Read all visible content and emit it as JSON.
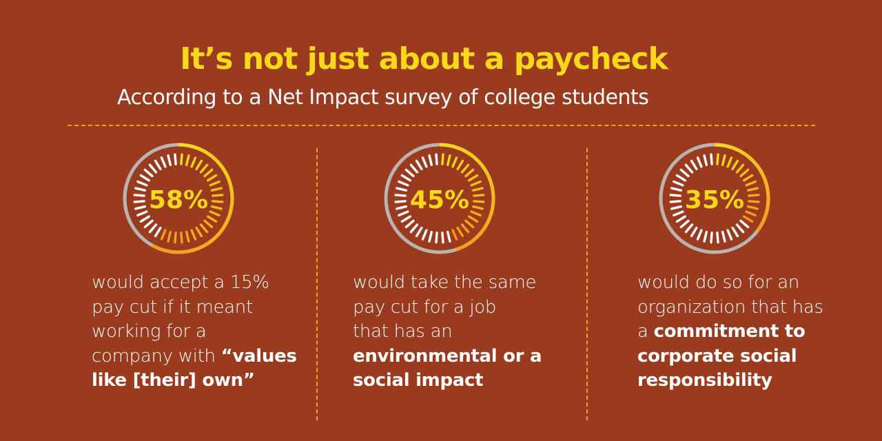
{
  "title": "It’s not just about a paycheck",
  "subtitle": "According to a Net Impact survey of college students",
  "colors": {
    "background": "#9a3a1f",
    "accent_yellow": "#f7d81a",
    "accent_orange": "#f39a1c",
    "track_gray": "#b9b4b0",
    "divider": "#e3a823"
  },
  "chart_data": [
    {
      "type": "gauge",
      "value": 58,
      "label": "58%",
      "description": [
        {
          "text": "would accept a 15%"
        },
        {
          "text": "pay cut if it meant"
        },
        {
          "text": "working for a"
        },
        {
          "text": "company with ",
          "bold": "“values"
        },
        {
          "text": "",
          "bold": "like [their] own”"
        }
      ]
    },
    {
      "type": "gauge",
      "value": 45,
      "label": "45%",
      "description": [
        {
          "text": "would take the same"
        },
        {
          "text": "pay cut for a job"
        },
        {
          "text": "that has an"
        },
        {
          "text": "",
          "bold": "environmental or a"
        },
        {
          "text": "",
          "bold": "social impact"
        }
      ]
    },
    {
      "type": "gauge",
      "value": 35,
      "label": "35%",
      "description": [
        {
          "text": "would do so for an"
        },
        {
          "text": "organization that has"
        },
        {
          "text": "a ",
          "bold": "commitment to"
        },
        {
          "text": "",
          "bold": "corporate social"
        },
        {
          "text": "",
          "bold": "responsibility"
        }
      ]
    }
  ]
}
